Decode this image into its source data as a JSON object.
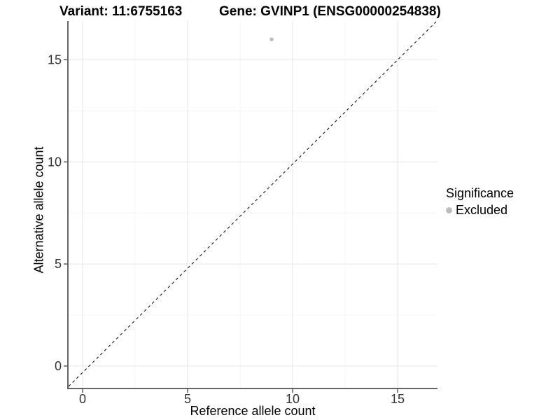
{
  "chart_data": {
    "type": "scatter",
    "title_left": "Variant: 11:6755163",
    "title_right": "Gene: GVINP1 (ENSG00000254838)",
    "xlabel": "Reference allele count",
    "ylabel": "Alternative allele count",
    "x_ticks": [
      0,
      5,
      10,
      15
    ],
    "y_ticks": [
      0,
      5,
      10,
      15
    ],
    "xlim": [
      -0.7,
      16.9
    ],
    "ylim": [
      -1.1,
      16.9
    ],
    "grid": {
      "major": true,
      "minor": true,
      "major_color": "#e6e6e6",
      "minor_color": "#f1f1f1"
    },
    "reference_line": {
      "equation": "y = x",
      "style": "dashed",
      "color": "#000000",
      "span": "panel-diagonal"
    },
    "series": [
      {
        "name": "Excluded",
        "color": "#bdbdbd",
        "points": [
          {
            "x": 9,
            "y": 16
          }
        ]
      }
    ],
    "legend": {
      "title": "Significance",
      "position": "right",
      "entries": [
        {
          "label": "Excluded",
          "color": "#bdbdbd"
        }
      ]
    },
    "axis_color": "#333333",
    "tick_label_color": "#333333",
    "background": "#ffffff"
  }
}
